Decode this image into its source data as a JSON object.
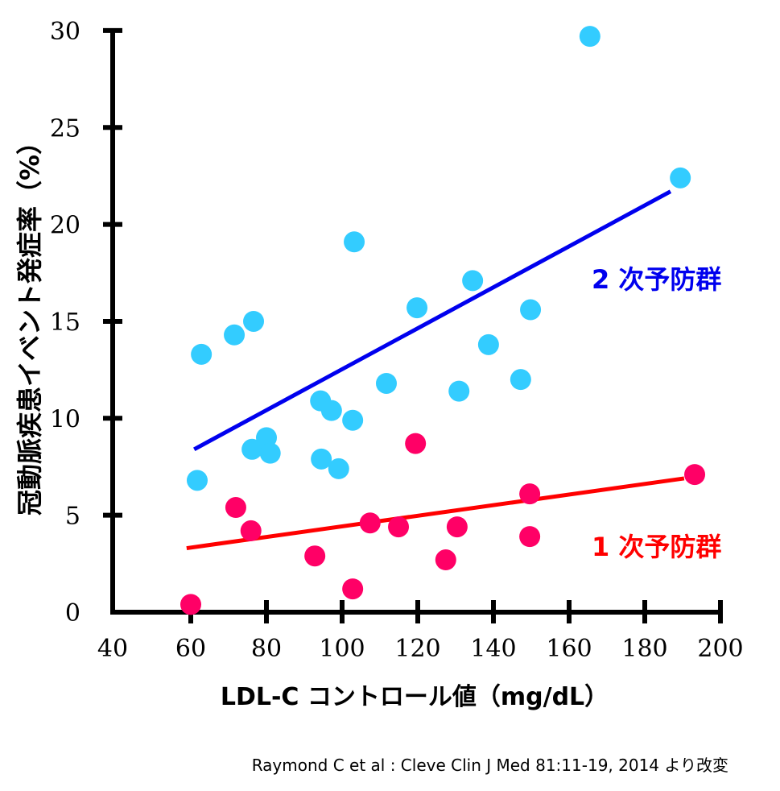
{
  "chart_data": {
    "type": "scatter",
    "xlabel": "LDL-C コントロール値（mg/dL）",
    "ylabel": "冠動脈疾患イベント発症率（%）",
    "xlim": [
      40,
      200
    ],
    "ylim": [
      0,
      30
    ],
    "xticks": [
      40,
      60,
      80,
      100,
      120,
      140,
      160,
      180,
      200
    ],
    "yticks": [
      0,
      5,
      10,
      15,
      20,
      25,
      30
    ],
    "grid": false,
    "series": [
      {
        "name": "2 次予防群",
        "color": "#33CCFF",
        "label_color": "#0000EE",
        "points": [
          [
            165.5,
            29.7
          ],
          [
            189.4,
            22.4
          ],
          [
            62.8,
            13.3
          ],
          [
            71.5,
            14.3
          ],
          [
            76.6,
            15.0
          ],
          [
            61.7,
            6.8
          ],
          [
            76.2,
            8.4
          ],
          [
            80,
            9.0
          ],
          [
            81,
            8.2
          ],
          [
            94.3,
            10.9
          ],
          [
            97.2,
            10.4
          ],
          [
            94.5,
            7.9
          ],
          [
            99.1,
            7.4
          ],
          [
            102.8,
            9.9
          ],
          [
            103.2,
            19.1
          ],
          [
            111.7,
            11.8
          ],
          [
            119.8,
            15.7
          ],
          [
            130.9,
            11.4
          ],
          [
            134.5,
            17.1
          ],
          [
            138.7,
            13.8
          ],
          [
            147.2,
            12.0
          ],
          [
            149.8,
            15.6
          ]
        ],
        "trendline": [
          [
            60.9,
            8.4
          ],
          [
            186.8,
            21.7
          ]
        ]
      },
      {
        "name": "1 次予防群",
        "color": "#FF0066",
        "label_color": "#FF0000",
        "points": [
          [
            60,
            0.4
          ],
          [
            71.9,
            5.4
          ],
          [
            75.9,
            4.2
          ],
          [
            92.8,
            2.9
          ],
          [
            102.8,
            1.2
          ],
          [
            107.4,
            4.6
          ],
          [
            114.9,
            4.4
          ],
          [
            119.4,
            8.7
          ],
          [
            127.4,
            2.7
          ],
          [
            130.4,
            4.4
          ],
          [
            149.6,
            6.1
          ],
          [
            149.6,
            3.9
          ],
          [
            193.2,
            7.1
          ]
        ],
        "trendline": [
          [
            58.9,
            3.3
          ],
          [
            190.4,
            6.9
          ]
        ]
      }
    ],
    "source": "Raymond C et al : Cleve Clin J Med 81:11-19, 2014 より改変"
  }
}
